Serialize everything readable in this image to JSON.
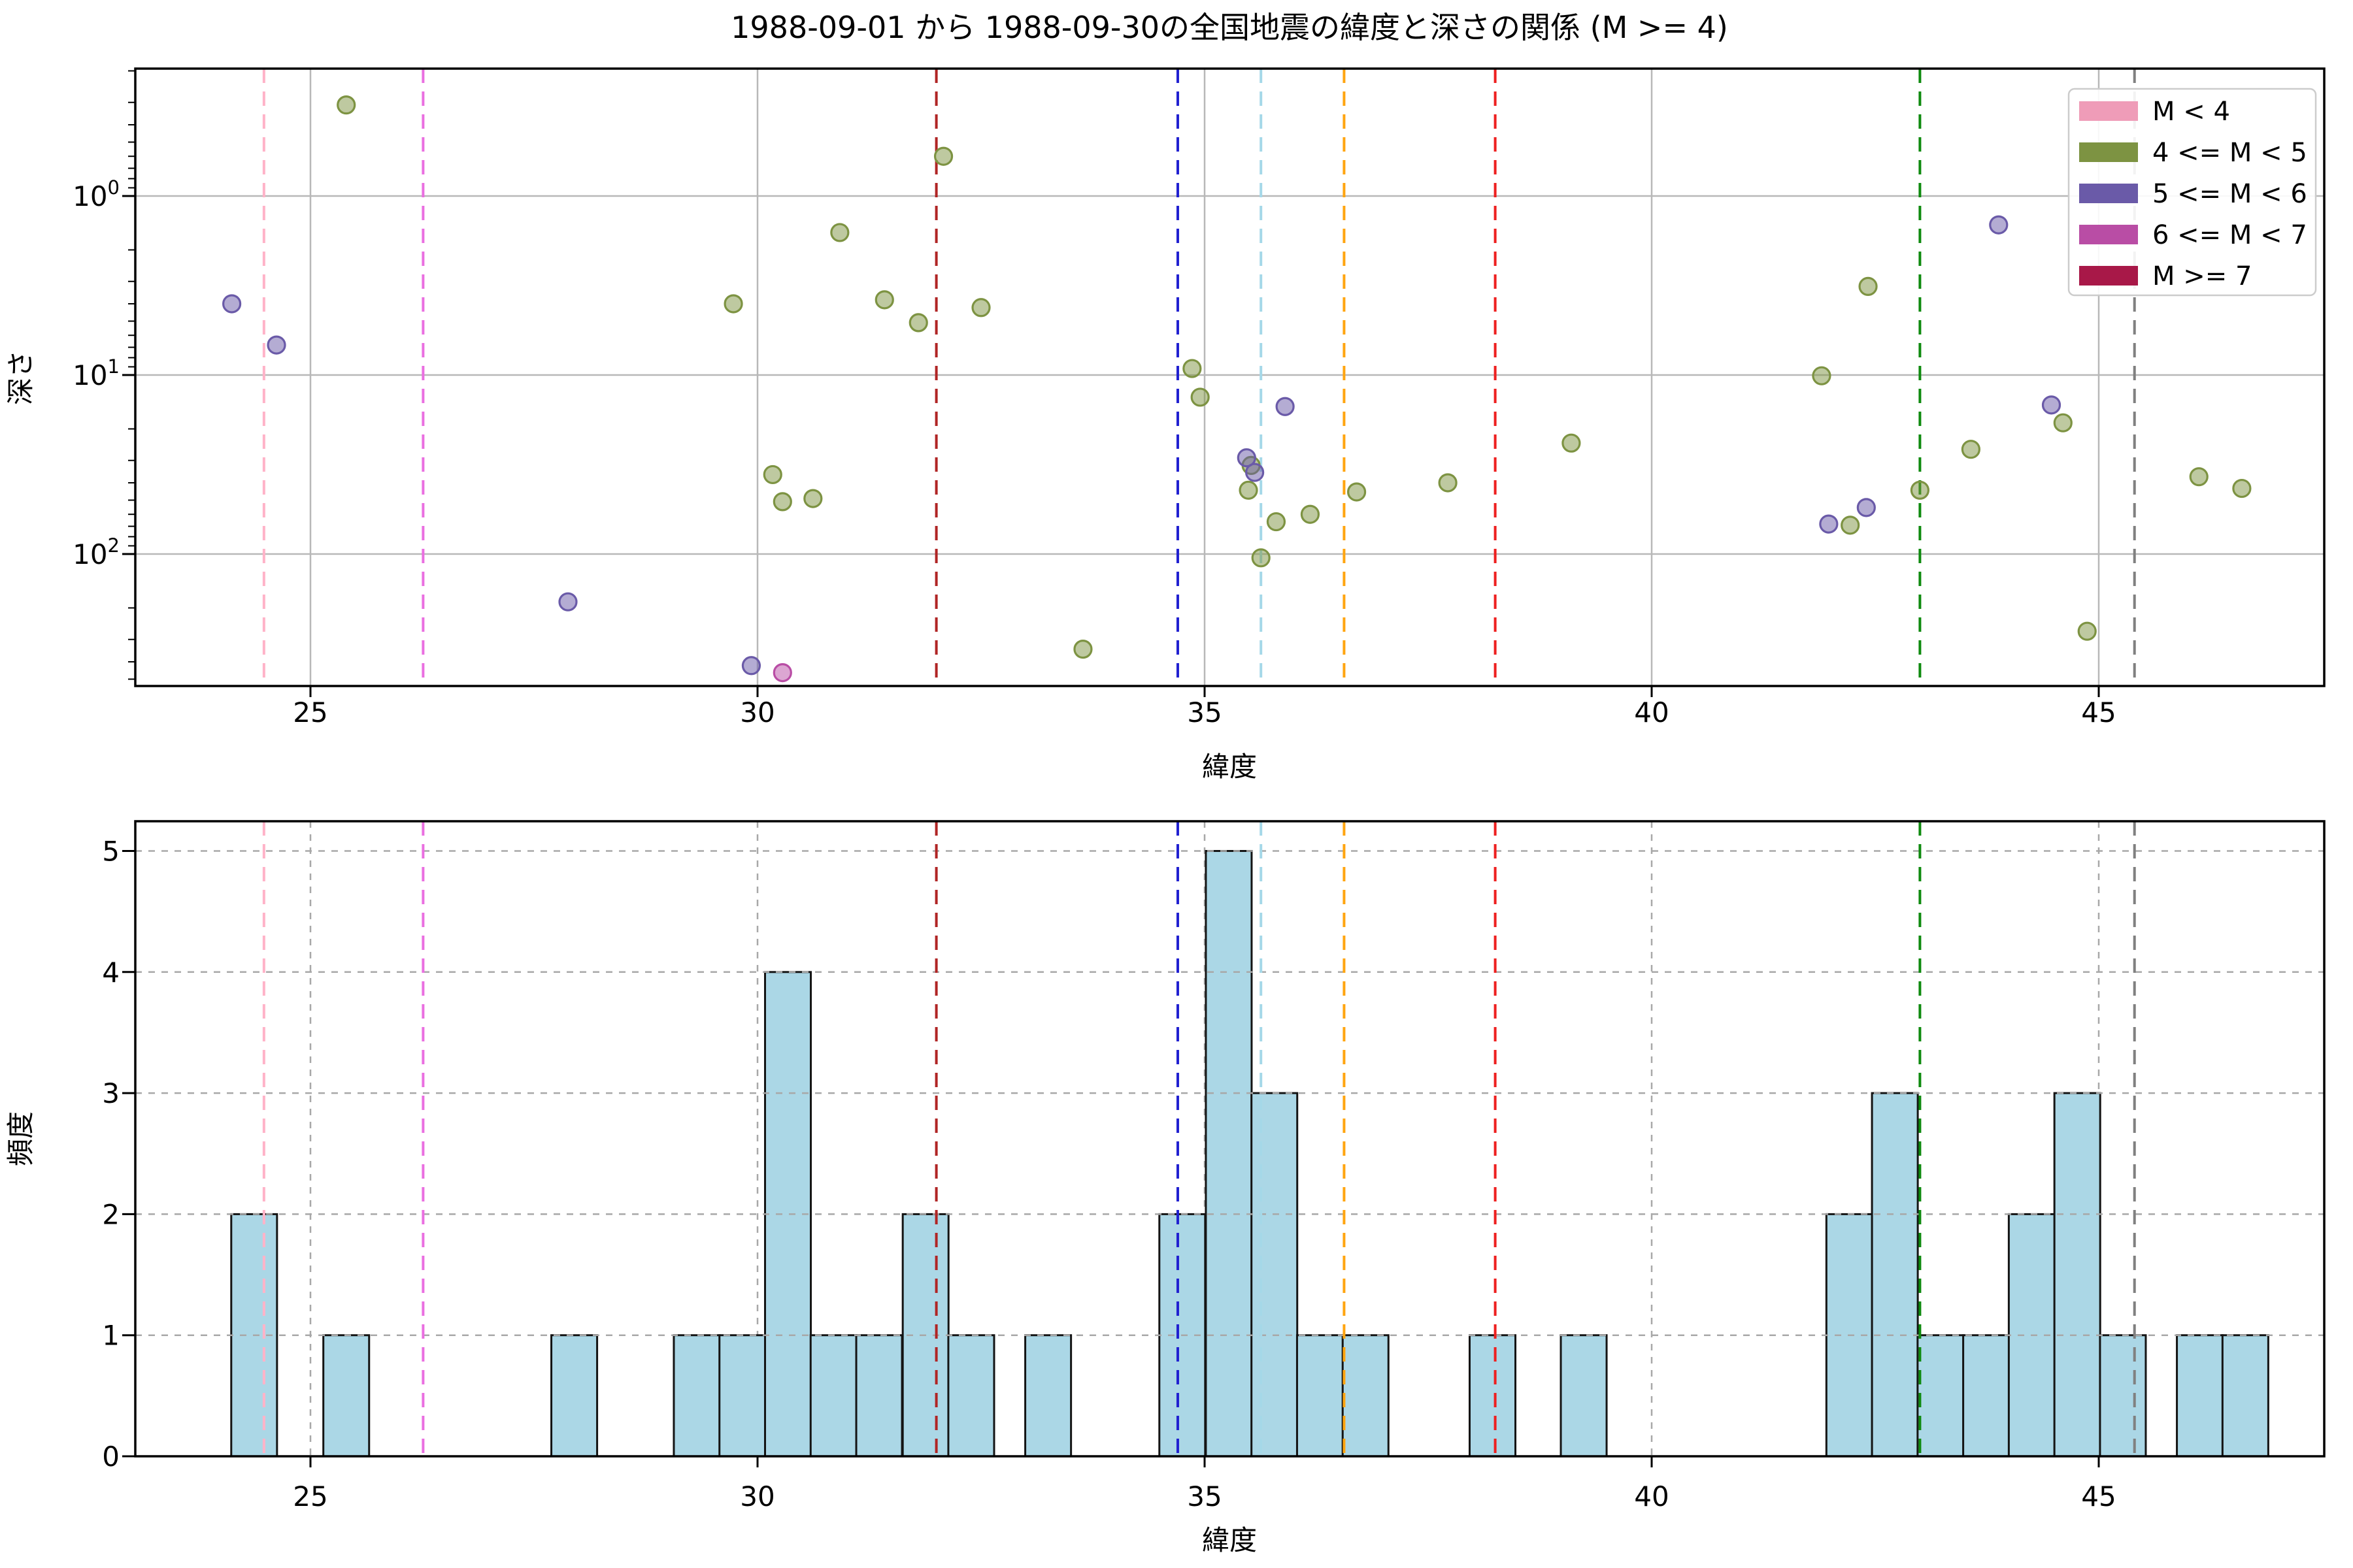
{
  "title": "1988-09-01 から 1988-09-30の全国地震の緯度と深さの関係 (M >= 4)",
  "legend": {
    "items": [
      {
        "label": "M < 4",
        "color": "#ef9cb8"
      },
      {
        "label": "4 <= M < 5",
        "color": "#7d9342"
      },
      {
        "label": "5 <= M < 6",
        "color": "#6a5aa8"
      },
      {
        "label": "6 <= M < 7",
        "color": "#b94da5"
      },
      {
        "label": "M >= 7",
        "color": "#a81848"
      }
    ]
  },
  "chart_data": [
    {
      "type": "scatter",
      "title": "1988-09-01 から 1988-09-30の全国地震の緯度と深さの関係 (M >= 4)",
      "xlabel": "緯度",
      "ylabel": "深さ",
      "xlim": [
        23.0,
        47.4
      ],
      "ylim_depth": [
        0.19,
        540
      ],
      "y_scale": "log-inverted",
      "grid": "solid",
      "xticks": [
        {
          "value": 25,
          "label": "25"
        },
        {
          "value": 30,
          "label": "30"
        },
        {
          "value": 35,
          "label": "35"
        },
        {
          "value": 40,
          "label": "40"
        },
        {
          "value": 45,
          "label": "45"
        }
      ],
      "yticks": [
        {
          "value": 1,
          "base": "10",
          "exp": "0"
        },
        {
          "value": 10,
          "base": "10",
          "exp": "1"
        },
        {
          "value": 100,
          "base": "10",
          "exp": "2"
        }
      ],
      "series": [
        {
          "name": "4 <= M < 5",
          "color": "#7d9342",
          "points": [
            [
              25.4,
              0.31
            ],
            [
              29.73,
              4.0
            ],
            [
              30.17,
              36
            ],
            [
              30.28,
              51
            ],
            [
              30.62,
              49
            ],
            [
              30.92,
              1.6
            ],
            [
              31.42,
              3.8
            ],
            [
              31.8,
              5.1
            ],
            [
              32.08,
              0.6
            ],
            [
              32.5,
              4.2
            ],
            [
              33.64,
              340
            ],
            [
              34.86,
              9.2
            ],
            [
              34.95,
              13.3
            ],
            [
              35.52,
              32
            ],
            [
              35.49,
              44
            ],
            [
              35.63,
              105
            ],
            [
              35.8,
              66
            ],
            [
              36.18,
              60
            ],
            [
              36.7,
              45
            ],
            [
              37.72,
              40
            ],
            [
              39.1,
              24
            ],
            [
              41.9,
              10.1
            ],
            [
              42.22,
              69
            ],
            [
              42.42,
              3.2
            ],
            [
              43.0,
              44
            ],
            [
              43.57,
              26
            ],
            [
              44.6,
              18.5
            ],
            [
              44.87,
              270
            ],
            [
              46.12,
              37
            ],
            [
              46.6,
              43
            ]
          ]
        },
        {
          "name": "5 <= M < 6",
          "color": "#6a5aa8",
          "points": [
            [
              24.12,
              4.0
            ],
            [
              24.62,
              6.8
            ],
            [
              27.88,
              185
            ],
            [
              29.93,
              420
            ],
            [
              35.47,
              29
            ],
            [
              35.56,
              35
            ],
            [
              35.9,
              15
            ],
            [
              41.98,
              68
            ],
            [
              42.4,
              55
            ],
            [
              43.88,
              1.45
            ],
            [
              44.47,
              14.7
            ]
          ]
        },
        {
          "name": "6 <= M < 7",
          "color": "#b94da5",
          "points": [
            [
              30.28,
              460
            ]
          ]
        }
      ]
    },
    {
      "type": "bar",
      "xlabel": "緯度",
      "ylabel": "頻度",
      "xlim": [
        23.0,
        47.4
      ],
      "ylim": [
        0,
        5.25
      ],
      "grid": "dashed",
      "bin_width": 0.512,
      "bar_color": "#abd7e6",
      "bar_edge_color": "#141414",
      "xticks": [
        {
          "value": 25,
          "label": "25"
        },
        {
          "value": 30,
          "label": "30"
        },
        {
          "value": 35,
          "label": "35"
        },
        {
          "value": 40,
          "label": "40"
        },
        {
          "value": 45,
          "label": "45"
        }
      ],
      "yticks": [
        {
          "value": 0,
          "label": "0"
        },
        {
          "value": 1,
          "label": "1"
        },
        {
          "value": 2,
          "label": "2"
        },
        {
          "value": 3,
          "label": "3"
        },
        {
          "value": 4,
          "label": "4"
        },
        {
          "value": 5,
          "label": "5"
        }
      ],
      "bars": [
        [
          24.37,
          2
        ],
        [
          25.4,
          1
        ],
        [
          27.95,
          1
        ],
        [
          29.32,
          1
        ],
        [
          29.83,
          1
        ],
        [
          30.34,
          4
        ],
        [
          30.85,
          1
        ],
        [
          31.36,
          1
        ],
        [
          31.88,
          2
        ],
        [
          32.39,
          1
        ],
        [
          33.25,
          1
        ],
        [
          34.75,
          2
        ],
        [
          35.27,
          5
        ],
        [
          35.78,
          3
        ],
        [
          36.29,
          1
        ],
        [
          36.8,
          1
        ],
        [
          38.22,
          1
        ],
        [
          39.24,
          1
        ],
        [
          42.21,
          2
        ],
        [
          42.72,
          3
        ],
        [
          43.23,
          1
        ],
        [
          43.74,
          1
        ],
        [
          44.25,
          2
        ],
        [
          44.76,
          3
        ],
        [
          45.27,
          1
        ],
        [
          46.13,
          1
        ],
        [
          46.64,
          1
        ]
      ]
    }
  ],
  "vlines": [
    {
      "lat": 24.48,
      "color": "#ffb3c8"
    },
    {
      "lat": 26.26,
      "color": "#ea6fe0"
    },
    {
      "lat": 32.0,
      "color": "#b02525"
    },
    {
      "lat": 34.7,
      "color": "#2020d0"
    },
    {
      "lat": 35.63,
      "color": "#a5d8e8"
    },
    {
      "lat": 36.56,
      "color": "#ffa510"
    },
    {
      "lat": 38.25,
      "color": "#ee2020"
    },
    {
      "lat": 43.0,
      "color": "#0f8a0f"
    },
    {
      "lat": 45.4,
      "color": "#808080"
    }
  ],
  "style_colors": {
    "grid": "#b8b8b8",
    "grid2": "#a8a8a8",
    "spine": "#000000",
    "scatter_fill_alpha": 0.5
  }
}
